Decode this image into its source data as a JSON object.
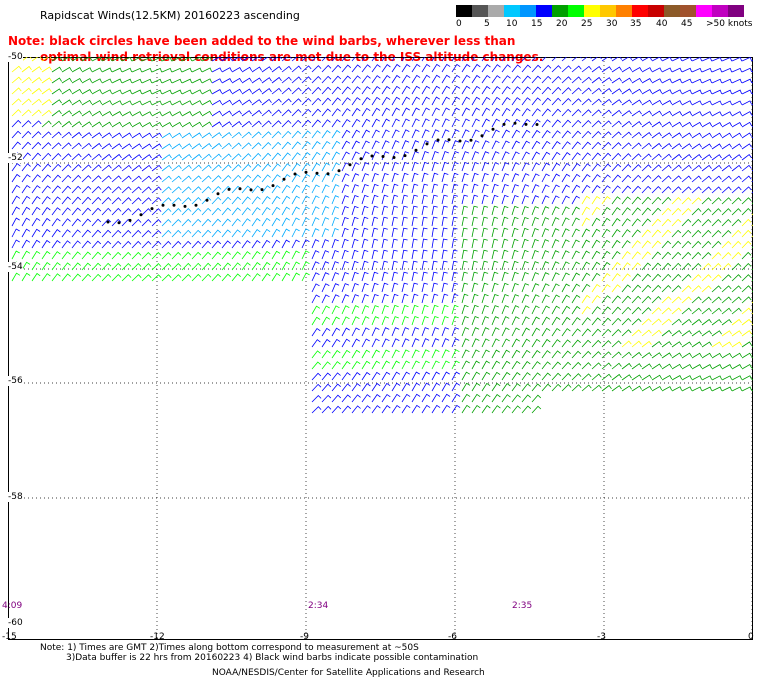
{
  "title": "Rapidscat Winds(12.5KM) 20160223 ascending",
  "notes": [
    "Note: black circles have been added to the wind barbs, wherever less than",
    "optimal wind retrieval conditions are met due to the ISS altitude changes."
  ],
  "legend": {
    "labels": [
      "0",
      "5",
      "10",
      "15",
      "20",
      "25",
      "30",
      "35",
      "40",
      "45",
      ">50 knots"
    ],
    "colors": [
      "#000000",
      "#555555",
      "#aaaaaa",
      "#00c8ff",
      "#0096ff",
      "#0000ff",
      "#00a000",
      "#00ff00",
      "#ffff00",
      "#ffc800",
      "#ff8000",
      "#ff0000",
      "#c80000",
      "#8c5a28",
      "#a0522d",
      "#ff00ff",
      "#c000c0",
      "#800080"
    ]
  },
  "map": {
    "lat_labels": [
      "-50",
      "-52",
      "-54",
      "-56",
      "-58",
      "-60"
    ],
    "lon_labels": [
      "-15",
      "-12",
      "-9",
      "-6",
      "-3",
      "0"
    ],
    "time_labels": [
      "4:09",
      "2:34",
      "2:35"
    ]
  },
  "footer": {
    "note_line1": "Note: 1) Times are GMT 2)Times along bottom correspond to measurement at ~50S",
    "note_line2": "3)Data buffer is 22 hrs from 20160223 4) Black wind barbs indicate possible contamination",
    "credit": "NOAA/NESDIS/Center for Satellite Applications and Research"
  },
  "colors": {
    "barb_blue": "#0000ff",
    "barb_light_blue": "#00aaff",
    "barb_green": "#00a000",
    "barb_light_green": "#00ff00",
    "barb_yellow": "#ffff00",
    "barb_black": "#000000",
    "grid": "#000000",
    "note": "#ff0000",
    "time": "#800080"
  }
}
